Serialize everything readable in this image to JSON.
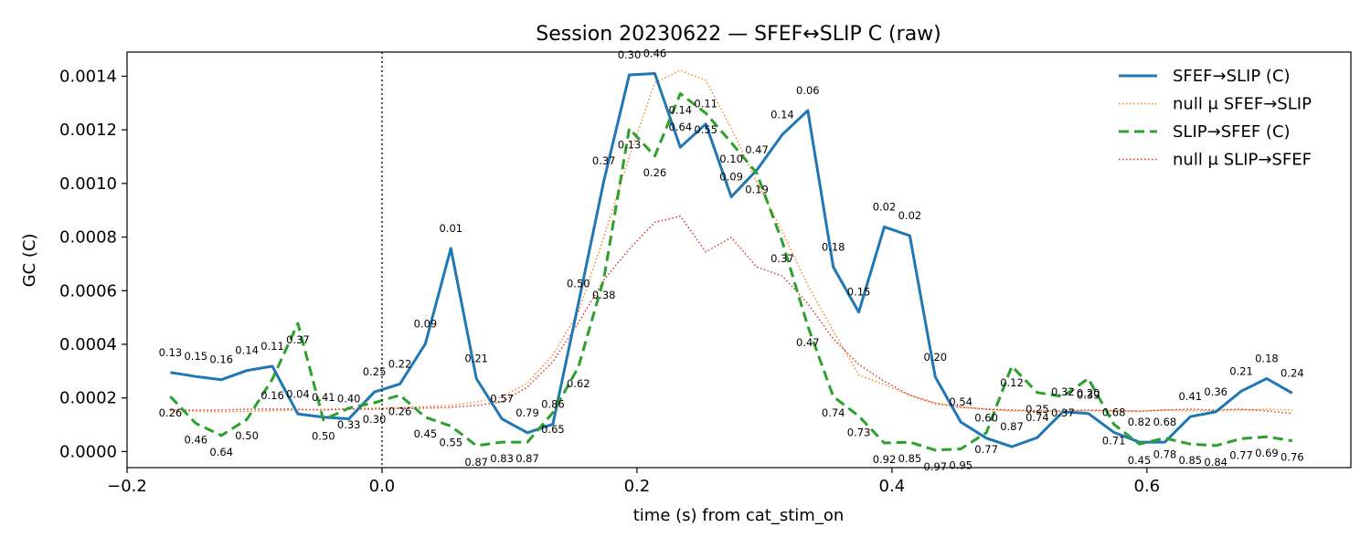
{
  "chart_data": {
    "type": "line",
    "title": "Session 20230622 — SFEF↔SLIP C (raw)",
    "xlabel": "time (s) from cat_stim_on",
    "ylabel": "GC (C)",
    "xlim": [
      -0.2,
      0.76
    ],
    "ylim": [
      -6e-05,
      0.00149
    ],
    "xticks": [
      -0.2,
      0.0,
      0.2,
      0.4,
      0.6
    ],
    "xtick_labels": [
      "−0.2",
      "0.0",
      "0.2",
      "0.4",
      "0.6"
    ],
    "yticks": [
      0.0,
      0.0002,
      0.0004,
      0.0006,
      0.0008,
      0.001,
      0.0012,
      0.0014
    ],
    "ytick_labels": [
      "0.0000",
      "0.0002",
      "0.0004",
      "0.0006",
      "0.0008",
      "0.0010",
      "0.0012",
      "0.0014"
    ],
    "vline_x": 0.0,
    "grid": false,
    "legend_position": "top-right",
    "x": [
      -0.166,
      -0.146,
      -0.126,
      -0.106,
      -0.086,
      -0.066,
      -0.046,
      -0.026,
      -0.006,
      0.014,
      0.034,
      0.054,
      0.074,
      0.094,
      0.114,
      0.134,
      0.154,
      0.174,
      0.194,
      0.214,
      0.234,
      0.254,
      0.274,
      0.294,
      0.314,
      0.334,
      0.354,
      0.374,
      0.394,
      0.414,
      0.434,
      0.454,
      0.474,
      0.494,
      0.514,
      0.534,
      0.554,
      0.574,
      0.594,
      0.614,
      0.634,
      0.654,
      0.674,
      0.694,
      0.714
    ],
    "series": [
      {
        "name": "SFEF→SLIP (C)",
        "color": "#1f77b4",
        "style": "solid",
        "values": [
          0.000295,
          0.00028,
          0.000268,
          0.000302,
          0.000318,
          0.00014,
          0.000128,
          0.000122,
          0.000222,
          0.000252,
          0.000402,
          0.000758,
          0.000272,
          0.000122,
          7e-05,
          0.000102,
          0.000552,
          0.00101,
          0.001405,
          0.00141,
          0.001135,
          0.001222,
          0.00095,
          0.00105,
          0.001182,
          0.001272,
          0.000688,
          0.00052,
          0.000838,
          0.000805,
          0.000278,
          0.00011,
          5e-05,
          1.8e-05,
          5.2e-05,
          0.000148,
          0.000142,
          7.2e-05,
          3.5e-05,
          3.5e-05,
          0.00013,
          0.000148,
          0.000225,
          0.000272,
          0.000218
        ]
      },
      {
        "name": "null μ SFEF→SLIP",
        "color": "#ff7f0e",
        "style": "dotted",
        "values": [
          0.000152,
          0.00015,
          0.000148,
          0.00015,
          0.000152,
          0.000155,
          0.000158,
          0.00016,
          0.000162,
          0.000165,
          0.000168,
          0.000172,
          0.000185,
          0.000205,
          0.000255,
          0.00036,
          0.00052,
          0.0008,
          0.0011,
          0.001375,
          0.001422,
          0.001385,
          0.001205,
          0.001005,
          0.00082,
          0.00062,
          0.00045,
          0.000285,
          0.00025,
          0.00021,
          0.000182,
          0.000168,
          0.000158,
          0.000152,
          0.00015,
          0.00015,
          0.000152,
          0.000152,
          0.000152,
          0.000155,
          0.000152,
          0.000152,
          0.000155,
          0.000158,
          0.000155
        ]
      },
      {
        "name": "SLIP→SFEF (C)",
        "color": "#2ca02c",
        "style": "dashed",
        "values": [
          0.000205,
          0.000105,
          6e-05,
          0.00012,
          0.00027,
          0.000478,
          0.000118,
          0.000162,
          0.000182,
          0.00021,
          0.000128,
          9.5e-05,
          2.2e-05,
          3.5e-05,
          3.5e-05,
          0.000145,
          0.000315,
          0.000645,
          0.001205,
          0.001102,
          0.001335,
          0.001262,
          0.001152,
          0.001038,
          0.000782,
          0.000468,
          0.000205,
          0.000132,
          3.2e-05,
          3.5e-05,
          5e-06,
          1e-05,
          7e-05,
          0.000318,
          0.00022,
          0.000205,
          0.000272,
          0.000102,
          2.8e-05,
          5e-05,
          2.8e-05,
          2.2e-05,
          4.8e-05,
          5.5e-05,
          4e-05
        ]
      },
      {
        "name": "null μ SLIP→SFEF",
        "color": "#d62728",
        "style": "dotted",
        "values": [
          0.000155,
          0.000155,
          0.000155,
          0.000158,
          0.000158,
          0.000158,
          0.000155,
          0.000158,
          0.000158,
          0.00016,
          0.000162,
          0.000165,
          0.000172,
          0.000185,
          0.00024,
          0.000335,
          0.00048,
          0.00064,
          0.000755,
          0.000855,
          0.000878,
          0.000745,
          0.000798,
          0.000688,
          0.000655,
          0.000552,
          0.00042,
          0.000325,
          0.000262,
          0.00021,
          0.000178,
          0.000165,
          0.000158,
          0.000155,
          0.000152,
          0.000152,
          0.000155,
          0.000152,
          0.00015,
          0.000155,
          0.000158,
          0.000155,
          0.000158,
          0.000152,
          0.000142
        ]
      }
    ],
    "annotations": {
      "SFEF→SLIP (C)": [
        "0.13",
        "0.15",
        "0.16",
        "0.14",
        "0.11",
        "0.04",
        "0.41",
        "0.40",
        "0.25",
        "0.22",
        "0.09",
        "0.01",
        "0.21",
        "0.57",
        "0.79",
        "0.86",
        "0.50",
        "0.37",
        "0.30",
        "0.46",
        "0.64",
        "0.11",
        "0.09",
        "0.47",
        "0.14",
        "0.06",
        "0.18",
        "0.15",
        "0.02",
        "0.02",
        "0.20",
        "0.54",
        "0.60",
        "0.87",
        "0.74",
        "0.32",
        "0.20",
        "0.68",
        "0.82",
        "0.68",
        "0.41",
        "0.36",
        "0.21",
        "0.18",
        "0.24"
      ],
      "SLIP→SFEF (C)": [
        "0.26",
        "0.46",
        "0.64",
        "0.50",
        "0.16",
        "0.37",
        "0.50",
        "0.33",
        "0.30",
        "0.26",
        "0.45",
        "0.55",
        "0.87",
        "0.83",
        "0.87",
        "0.65",
        "0.62",
        "0.38",
        "0.13",
        "0.26",
        "0.14",
        "0.55",
        "0.10",
        "0.19",
        "0.37",
        "0.47",
        "0.74",
        "0.73",
        "0.92",
        "0.85",
        "0.97",
        "0.95",
        "0.77",
        "0.12",
        "0.25",
        "0.37",
        "0.39",
        "0.71",
        "0.45",
        "0.78",
        "0.85",
        "0.84",
        "0.77",
        "0.69",
        "0.76"
      ]
    }
  }
}
